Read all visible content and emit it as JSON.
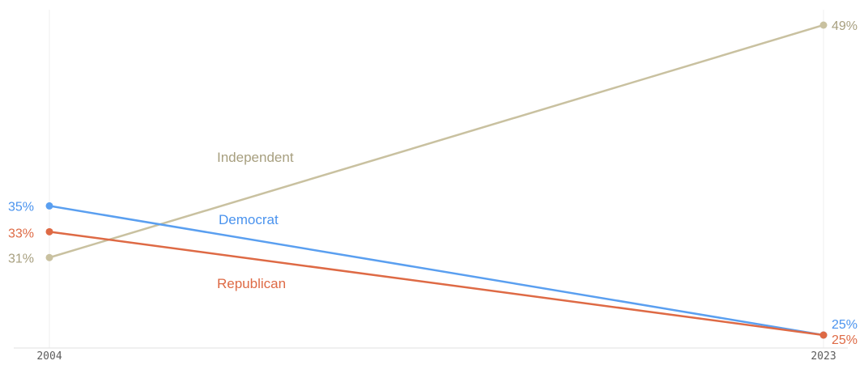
{
  "chart_data": {
    "type": "line",
    "x": [
      "2004",
      "2023"
    ],
    "x_tick_labels": [
      "2004",
      "2023"
    ],
    "ylim": [
      25,
      49
    ],
    "grid": "vertical",
    "legend": "inline labels",
    "series": [
      {
        "name": "Independent",
        "values": [
          31,
          49
        ],
        "start_label": "31%",
        "end_label": "49%",
        "color": "#c9c1a0",
        "label_color": "#a79f7f"
      },
      {
        "name": "Democrat",
        "values": [
          35,
          25
        ],
        "start_label": "35%",
        "end_label": "25%",
        "color": "#5a9ff0",
        "label_color": "#4a93ee"
      },
      {
        "name": "Republican",
        "values": [
          33,
          25
        ],
        "start_label": "33%",
        "end_label": "25%",
        "color": "#de6a45",
        "label_color": "#de6a45"
      }
    ]
  },
  "colors": {
    "axis": "#e2e2e2",
    "gridline": "#efefef",
    "tick_label": "#5c5c5c"
  }
}
